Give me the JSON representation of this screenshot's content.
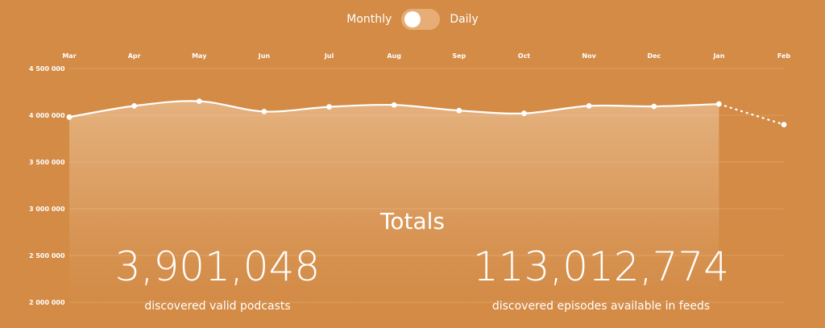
{
  "toggle": {
    "left_label": "Monthly",
    "right_label": "Daily",
    "selected": "Monthly"
  },
  "chart_data": {
    "type": "line",
    "title": "",
    "xlabel": "",
    "ylabel": "",
    "categories": [
      "Mar",
      "Apr",
      "May",
      "Jun",
      "Jul",
      "Aug",
      "Sep",
      "Oct",
      "Nov",
      "Dec",
      "Jan",
      "Feb"
    ],
    "series": [
      {
        "values": [
          3980000,
          4100000,
          4150000,
          4040000,
          4090000,
          4110000,
          4050000,
          4020000,
          4100000,
          4095000,
          4120000,
          3900000
        ]
      }
    ],
    "projected_last_point": true,
    "y_ticks": [
      2000000,
      2500000,
      3000000,
      3500000,
      4000000,
      4500000
    ],
    "y_tick_labels": [
      "2 000 000",
      "2 500 000",
      "3 000 000",
      "3 500 000",
      "4 000 000",
      "4 500 000"
    ],
    "ylim": [
      2000000,
      4500000
    ],
    "grid": true,
    "colors": {
      "background": "#d38b46",
      "line": "#ffffff",
      "grid": "#e2a268",
      "area": "#f3d0ac",
      "toggle_track": "#e7ad77"
    }
  },
  "totals": {
    "title": "Totals",
    "podcasts": {
      "value": "3,901,048",
      "label": "discovered valid podcasts"
    },
    "episodes": {
      "value": "113,012,774",
      "label": "discovered episodes available in feeds"
    }
  }
}
